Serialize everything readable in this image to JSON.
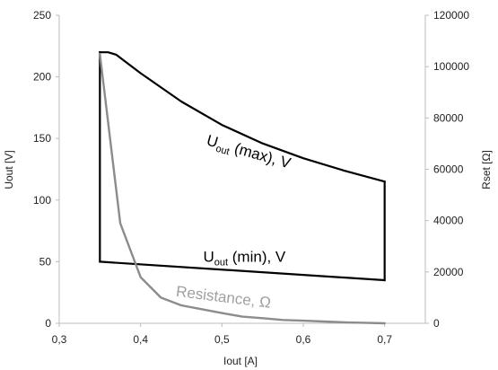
{
  "chart_data": {
    "type": "line",
    "xlabel": "Iout [A]",
    "ylabel": "Uout [V]",
    "y2label": "Rset [Ω]",
    "xlim": [
      0.3,
      0.75
    ],
    "ylim": [
      0,
      250
    ],
    "y2lim": [
      0,
      120000
    ],
    "xticks": [
      "0,3",
      "0,4",
      "0,5",
      "0,6",
      "0,7"
    ],
    "xtick_values": [
      0.3,
      0.4,
      0.5,
      0.6,
      0.7
    ],
    "yticks": [
      "0",
      "50",
      "100",
      "150",
      "200",
      "250"
    ],
    "yticks_values": [
      0,
      50,
      100,
      150,
      200,
      250
    ],
    "y2ticks": [
      "0",
      "20000",
      "40000",
      "60000",
      "80000",
      "100000",
      "120000"
    ],
    "y2ticks_values": [
      0,
      20000,
      40000,
      60000,
      80000,
      100000,
      120000
    ],
    "grid": false,
    "legend": "none",
    "series": [
      {
        "name": "Uout (max), V",
        "axis": "left",
        "color": "#000000",
        "x": [
          0.35,
          0.36,
          0.37,
          0.38,
          0.4,
          0.45,
          0.5,
          0.55,
          0.6,
          0.65,
          0.7
        ],
        "y": [
          220,
          220,
          218,
          213,
          203,
          180,
          161,
          146,
          134,
          124,
          115
        ]
      },
      {
        "name": "Uout (min), V",
        "axis": "left",
        "color": "#000000",
        "x": [
          0.35,
          0.7
        ],
        "y": [
          50,
          35
        ]
      },
      {
        "name": "Resistance, Ω",
        "axis": "right",
        "color": "#8c8c8c",
        "x": [
          0.35,
          0.375,
          0.4,
          0.425,
          0.45,
          0.475,
          0.5,
          0.525,
          0.55,
          0.575,
          0.6,
          0.625,
          0.65,
          0.675,
          0.7
        ],
        "y": [
          105000,
          39000,
          18000,
          10000,
          7000,
          5500,
          4000,
          2600,
          2000,
          1300,
          1000,
          700,
          400,
          200,
          0
        ]
      }
    ],
    "boundary_verticals": [
      {
        "x": 0.35,
        "y_from": 50,
        "y_to": 220,
        "color": "#000000"
      },
      {
        "x": 0.7,
        "y_from": 35,
        "y_to": 115,
        "color": "#000000"
      }
    ],
    "annotations": [
      {
        "main": "U",
        "sub": "out",
        "rest": " (max), V",
        "x": 0.48,
        "y": 145,
        "color": "#000000"
      },
      {
        "main": "U",
        "sub": "out",
        "rest": " (min), V",
        "x": 0.477,
        "y": 50,
        "color": "#000000"
      },
      {
        "main": "Resistance, Ω",
        "sub": "",
        "rest": "",
        "x": 0.443,
        "y": 22,
        "color": "#a0a0a0"
      }
    ]
  }
}
